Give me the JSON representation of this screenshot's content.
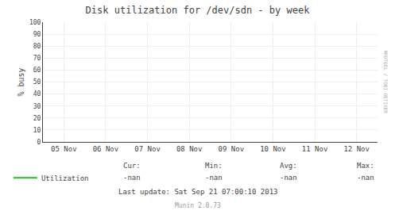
{
  "chart_data": {
    "type": "line",
    "title": "Disk utilization for /dev/sdn - by week",
    "ylabel": "% busy",
    "categories": [
      "05 Nov",
      "06 Nov",
      "07 Nov",
      "08 Nov",
      "09 Nov",
      "10 Nov",
      "11 Nov",
      "12 Nov"
    ],
    "series": [
      {
        "name": "Utilization",
        "color": "#22bb22",
        "values": [
          null,
          null,
          null,
          null,
          null,
          null,
          null,
          null
        ]
      }
    ],
    "ylim": [
      0,
      100
    ],
    "yticks": [
      0,
      10,
      20,
      30,
      40,
      50,
      60,
      70,
      80,
      90,
      100
    ],
    "grid": true,
    "stats": [
      {
        "label": "Cur:",
        "value": "-nan"
      },
      {
        "label": "Min:",
        "value": "-nan"
      },
      {
        "label": "Avg:",
        "value": "-nan"
      },
      {
        "label": "Max:",
        "value": "-nan"
      }
    ],
    "footer": [
      "Last update: Sat Sep 21 07:00:10 2013",
      "Munin 2.0.73"
    ],
    "watermark": "RRDTOOL / TOBI OETIKER"
  }
}
